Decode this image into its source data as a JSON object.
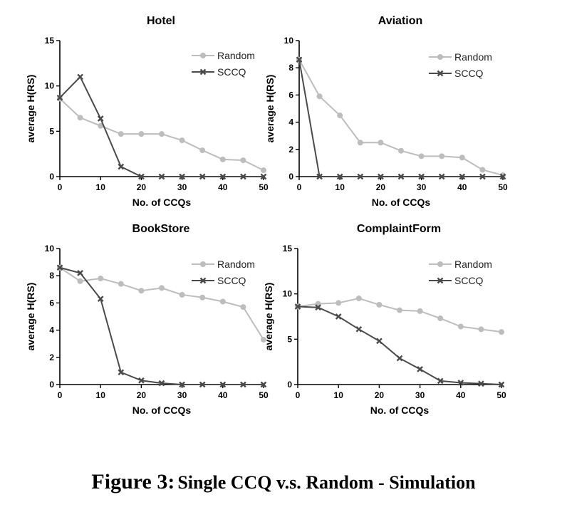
{
  "colors": {
    "random": "#bdbdbd",
    "sccq": "#4a4a4a",
    "axis": "#000000"
  },
  "chart_data": [
    {
      "type": "line",
      "title": "Hotel",
      "xlabel": "No. of CCQs",
      "ylabel": "average H(RS)",
      "xlim": [
        0,
        50
      ],
      "ylim": [
        0,
        15
      ],
      "xticks": [
        0,
        10,
        20,
        30,
        40,
        50
      ],
      "yticks": [
        0,
        5,
        10,
        15
      ],
      "legend": "top-right",
      "x": [
        0,
        5,
        10,
        15,
        20,
        25,
        30,
        35,
        40,
        45,
        50
      ],
      "series": [
        {
          "name": "Random",
          "marker": "circle",
          "values": [
            8.6,
            6.5,
            5.6,
            4.7,
            4.7,
            4.7,
            4.0,
            2.9,
            1.9,
            1.8,
            0.7
          ]
        },
        {
          "name": "SCCQ",
          "marker": "x",
          "values": [
            8.7,
            11.0,
            6.4,
            1.1,
            0,
            0,
            0,
            0,
            0,
            0,
            0
          ]
        }
      ]
    },
    {
      "type": "line",
      "title": "Aviation",
      "xlabel": "No. of CCQs",
      "ylabel": "average H(RS)",
      "xlim": [
        0,
        50
      ],
      "ylim": [
        0,
        10
      ],
      "xticks": [
        0,
        10,
        20,
        30,
        40,
        50
      ],
      "yticks": [
        0,
        2,
        4,
        6,
        8,
        10
      ],
      "legend": "top-right",
      "x": [
        0,
        5,
        10,
        15,
        20,
        25,
        30,
        35,
        40,
        45,
        50
      ],
      "series": [
        {
          "name": "Random",
          "marker": "circle",
          "values": [
            8.6,
            5.9,
            4.5,
            2.5,
            2.5,
            1.9,
            1.5,
            1.5,
            1.4,
            0.5,
            0.1
          ]
        },
        {
          "name": "SCCQ",
          "marker": "x",
          "values": [
            8.6,
            0,
            0,
            0,
            0,
            0,
            0,
            0,
            0,
            0,
            0
          ]
        }
      ]
    },
    {
      "type": "line",
      "title": "BookStore",
      "xlabel": "No. of CCQs",
      "ylabel": "average H(RS)",
      "xlim": [
        0,
        50
      ],
      "ylim": [
        0,
        10
      ],
      "xticks": [
        0,
        10,
        20,
        30,
        40,
        50
      ],
      "yticks": [
        0,
        2,
        4,
        6,
        8,
        10
      ],
      "legend": "top-right",
      "x": [
        0,
        5,
        10,
        15,
        20,
        25,
        30,
        35,
        40,
        45,
        50
      ],
      "series": [
        {
          "name": "Random",
          "marker": "circle",
          "values": [
            8.6,
            7.6,
            7.8,
            7.4,
            6.9,
            7.1,
            6.6,
            6.4,
            6.1,
            5.7,
            3.3
          ]
        },
        {
          "name": "SCCQ",
          "marker": "x",
          "values": [
            8.6,
            8.2,
            6.3,
            0.9,
            0.3,
            0.1,
            0,
            0,
            0,
            0,
            0
          ]
        }
      ]
    },
    {
      "type": "line",
      "title": "ComplaintForm",
      "xlabel": "No. of CCQs",
      "ylabel": "average H(RS)",
      "xlim": [
        0,
        50
      ],
      "ylim": [
        0,
        15
      ],
      "xticks": [
        0,
        10,
        20,
        30,
        40,
        50
      ],
      "yticks": [
        0,
        5,
        10,
        15
      ],
      "legend": "top-right",
      "x": [
        0,
        5,
        10,
        15,
        20,
        25,
        30,
        35,
        40,
        45,
        50
      ],
      "series": [
        {
          "name": "Random",
          "marker": "circle",
          "values": [
            8.6,
            8.9,
            9.0,
            9.5,
            8.8,
            8.2,
            8.1,
            7.3,
            6.4,
            6.1,
            5.8
          ]
        },
        {
          "name": "SCCQ",
          "marker": "x",
          "values": [
            8.6,
            8.5,
            7.5,
            6.1,
            4.8,
            2.9,
            1.7,
            0.4,
            0.2,
            0.1,
            0
          ]
        }
      ]
    }
  ],
  "caption": {
    "label": "Figure 3:",
    "text": "Single CCQ v.s. Random - Simulation"
  }
}
